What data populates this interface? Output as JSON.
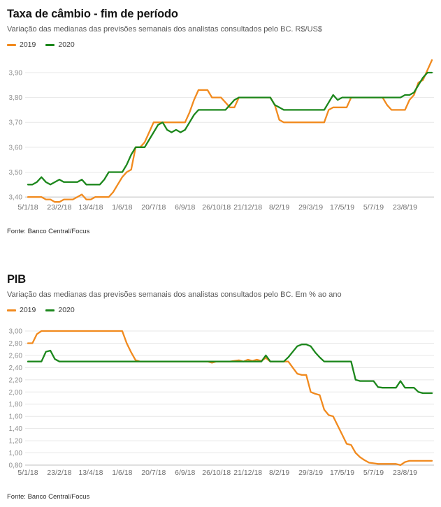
{
  "chart_data": [
    {
      "type": "line",
      "title": "Taxa de câmbio - fim de período",
      "subtitle": "Variação das medianas das previsões semanais dos analistas consultados pelo BC. R$/US$",
      "source": "Fonte: Banco Central/Focus",
      "legend_position": "top-left",
      "grid": "horizontal",
      "decimal_separator": ",",
      "x_tick_labels": [
        "5/1/18",
        "23/2/18",
        "13/4/18",
        "1/6/18",
        "20/7/18",
        "6/9/18",
        "26/10/18",
        "21/12/18",
        "8/2/19",
        "29/3/19",
        "17/5/19",
        "5/7/19",
        "23/8/19"
      ],
      "x_ticks_every": 7,
      "y_ticks": [
        3.4,
        3.5,
        3.6,
        3.7,
        3.8,
        3.9
      ],
      "ylim": [
        3.389,
        3.956
      ],
      "series": [
        {
          "name": "2019",
          "color": "#f18a1e",
          "values": [
            3.4,
            3.4,
            3.4,
            3.4,
            3.39,
            3.39,
            3.38,
            3.38,
            3.39,
            3.39,
            3.39,
            3.4,
            3.41,
            3.39,
            3.39,
            3.4,
            3.4,
            3.4,
            3.4,
            3.42,
            3.45,
            3.48,
            3.5,
            3.51,
            3.6,
            3.6,
            3.62,
            3.66,
            3.7,
            3.7,
            3.7,
            3.7,
            3.7,
            3.7,
            3.7,
            3.7,
            3.74,
            3.79,
            3.83,
            3.83,
            3.83,
            3.8,
            3.8,
            3.8,
            3.78,
            3.76,
            3.76,
            3.8,
            3.8,
            3.8,
            3.8,
            3.8,
            3.8,
            3.8,
            3.8,
            3.77,
            3.71,
            3.7,
            3.7,
            3.7,
            3.7,
            3.7,
            3.7,
            3.7,
            3.7,
            3.7,
            3.7,
            3.75,
            3.76,
            3.76,
            3.76,
            3.76,
            3.8,
            3.8,
            3.8,
            3.8,
            3.8,
            3.8,
            3.8,
            3.8,
            3.77,
            3.75,
            3.75,
            3.75,
            3.75,
            3.79,
            3.81,
            3.86,
            3.87,
            3.91,
            3.95
          ]
        },
        {
          "name": "2020",
          "color": "#1c871c",
          "values": [
            3.45,
            3.45,
            3.46,
            3.48,
            3.46,
            3.45,
            3.46,
            3.47,
            3.46,
            3.46,
            3.46,
            3.46,
            3.47,
            3.45,
            3.45,
            3.45,
            3.45,
            3.47,
            3.5,
            3.5,
            3.5,
            3.5,
            3.53,
            3.57,
            3.6,
            3.6,
            3.6,
            3.63,
            3.66,
            3.69,
            3.7,
            3.67,
            3.66,
            3.67,
            3.66,
            3.67,
            3.7,
            3.73,
            3.75,
            3.75,
            3.75,
            3.75,
            3.75,
            3.75,
            3.75,
            3.77,
            3.79,
            3.8,
            3.8,
            3.8,
            3.8,
            3.8,
            3.8,
            3.8,
            3.8,
            3.77,
            3.76,
            3.75,
            3.75,
            3.75,
            3.75,
            3.75,
            3.75,
            3.75,
            3.75,
            3.75,
            3.75,
            3.78,
            3.81,
            3.79,
            3.8,
            3.8,
            3.8,
            3.8,
            3.8,
            3.8,
            3.8,
            3.8,
            3.8,
            3.8,
            3.8,
            3.8,
            3.8,
            3.8,
            3.81,
            3.81,
            3.82,
            3.85,
            3.88,
            3.9,
            3.9
          ]
        }
      ]
    },
    {
      "type": "line",
      "title": "PIB",
      "subtitle": "Variação das medianas das previsões semanais dos analistas consultados pelo BC. Em % ao ano",
      "source": "Fonte: Banco Central/Focus",
      "legend_position": "top-left",
      "grid": "horizontal",
      "decimal_separator": ",",
      "x_tick_labels": [
        "5/1/18",
        "23/2/18",
        "13/4/18",
        "1/6/18",
        "20/7/18",
        "6/9/18",
        "26/10/18",
        "21/12/18",
        "8/2/19",
        "29/3/19",
        "17/5/19",
        "5/7/19",
        "23/8/19"
      ],
      "x_ticks_every": 7,
      "y_ticks": [
        0.8,
        1.0,
        1.2,
        1.4,
        1.6,
        1.8,
        2.0,
        2.2,
        2.4,
        2.6,
        2.8,
        3.0
      ],
      "ylim": [
        0.8,
        3.115
      ],
      "series": [
        {
          "name": "2019",
          "color": "#f18a1e",
          "values": [
            2.8,
            2.8,
            2.95,
            3.0,
            3.0,
            3.0,
            3.0,
            3.0,
            3.0,
            3.0,
            3.0,
            3.0,
            3.0,
            3.0,
            3.0,
            3.0,
            3.0,
            3.0,
            3.0,
            3.0,
            3.0,
            3.0,
            2.8,
            2.65,
            2.52,
            2.5,
            2.5,
            2.5,
            2.5,
            2.5,
            2.5,
            2.5,
            2.5,
            2.5,
            2.5,
            2.5,
            2.5,
            2.5,
            2.5,
            2.5,
            2.5,
            2.48,
            2.5,
            2.5,
            2.5,
            2.5,
            2.51,
            2.52,
            2.5,
            2.53,
            2.51,
            2.53,
            2.51,
            2.56,
            2.5,
            2.5,
            2.5,
            2.5,
            2.5,
            2.4,
            2.3,
            2.28,
            2.28,
            2.0,
            1.97,
            1.95,
            1.71,
            1.62,
            1.6,
            1.45,
            1.3,
            1.15,
            1.13,
            1.0,
            0.93,
            0.88,
            0.84,
            0.83,
            0.82,
            0.82,
            0.82,
            0.82,
            0.82,
            0.8,
            0.85,
            0.87,
            0.87,
            0.87,
            0.87,
            0.87,
            0.87
          ]
        },
        {
          "name": "2020",
          "color": "#1c871c",
          "values": [
            2.5,
            2.5,
            2.5,
            2.5,
            2.66,
            2.68,
            2.54,
            2.5,
            2.5,
            2.5,
            2.5,
            2.5,
            2.5,
            2.5,
            2.5,
            2.5,
            2.5,
            2.5,
            2.5,
            2.5,
            2.5,
            2.5,
            2.5,
            2.5,
            2.5,
            2.5,
            2.5,
            2.5,
            2.5,
            2.5,
            2.5,
            2.5,
            2.5,
            2.5,
            2.5,
            2.5,
            2.5,
            2.5,
            2.5,
            2.5,
            2.5,
            2.5,
            2.5,
            2.5,
            2.5,
            2.5,
            2.5,
            2.5,
            2.5,
            2.5,
            2.5,
            2.5,
            2.5,
            2.6,
            2.5,
            2.5,
            2.5,
            2.5,
            2.57,
            2.66,
            2.75,
            2.78,
            2.78,
            2.75,
            2.65,
            2.57,
            2.5,
            2.5,
            2.5,
            2.5,
            2.5,
            2.5,
            2.5,
            2.2,
            2.18,
            2.18,
            2.18,
            2.18,
            2.08,
            2.07,
            2.07,
            2.07,
            2.07,
            2.18,
            2.07,
            2.07,
            2.07,
            2.0,
            1.98,
            1.98,
            1.98
          ]
        }
      ]
    }
  ],
  "style": {
    "grid_color": "#e7e7e7",
    "axis_color": "#c2c2c2",
    "y_label_color": "#8f8f8f",
    "x_label_color": "#6f6f6f"
  }
}
